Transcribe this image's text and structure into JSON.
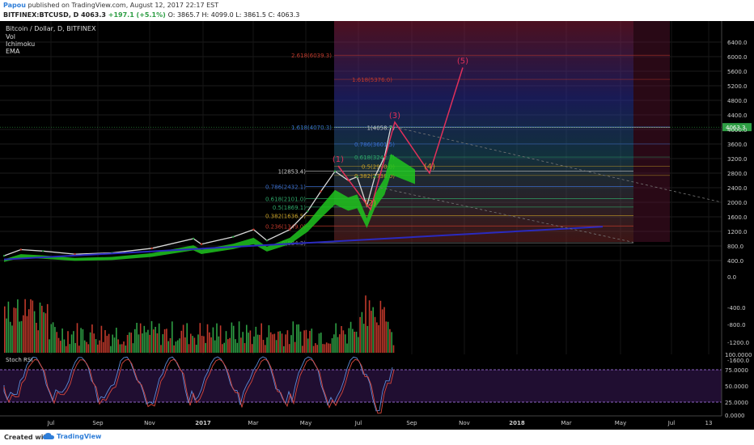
{
  "header": {
    "author": "Papou",
    "published": "published on TradingView.com, August 12, 2017 22:17 EST",
    "symbol": "BITFINEX:BTCUSD, D",
    "last": "4063.3",
    "change": "+197.1 (+5.1%)",
    "ohlc": "O: 3865.7 H: 4099.0 L: 3861.5 C: 4063.3"
  },
  "legend": {
    "title": "Bitcoin / Dollar, D, BITFINEX",
    "items": [
      "Vol",
      "Ichimoku",
      "EMA"
    ],
    "stoch": "Stoch RSI"
  },
  "footer": {
    "created": "Created with",
    "brand": "TradingView"
  },
  "colors": {
    "bg": "#000000",
    "up": "#2e9e44",
    "down": "#c0392b",
    "ichimoku": "#1ec41e",
    "ema": "#2a2abf",
    "wave": "#e0305a",
    "stoch_k": "#5b8bd9",
    "stoch_d": "#d9473b",
    "price_label": "#2e9e44"
  },
  "chart_data": {
    "type": "candlestick",
    "title": "Bitcoin / Dollar, D, BITFINEX",
    "symbol": "BITFINEX:BTCUSD",
    "ylim": [
      200,
      6700
    ],
    "y_ticks": [
      "6400.0",
      "6000.0",
      "5600.0",
      "5200.0",
      "4800.0",
      "4400.0",
      "4000.0",
      "3600.0",
      "3200.0",
      "2800.0",
      "2400.0",
      "2000.0",
      "1600.0",
      "1200.0",
      "800.0",
      "400.0"
    ],
    "x_ticks": [
      "Jul",
      "Sep",
      "Nov",
      "2017",
      "Mar",
      "May",
      "Jul",
      "Sep",
      "Nov",
      "2018",
      "Mar",
      "May",
      "Jul",
      "13"
    ],
    "last_price": 4063.3,
    "price_path": [
      [
        "2016-06-01",
        530
      ],
      [
        "2016-06-20",
        700
      ],
      [
        "2016-07-15",
        660
      ],
      [
        "2016-08-20",
        575
      ],
      [
        "2016-10-01",
        610
      ],
      [
        "2016-11-15",
        735
      ],
      [
        "2017-01-01",
        1000
      ],
      [
        "2017-01-10",
        850
      ],
      [
        "2017-02-15",
        1050
      ],
      [
        "2017-03-10",
        1250
      ],
      [
        "2017-03-25",
        950
      ],
      [
        "2017-04-20",
        1250
      ],
      [
        "2017-05-10",
        1750
      ],
      [
        "2017-05-25",
        2300
      ],
      [
        "2017-06-10",
        2853
      ],
      [
        "2017-06-25",
        2600
      ],
      [
        "2017-07-05",
        2700
      ],
      [
        "2017-07-16",
        1900
      ],
      [
        "2017-07-25",
        2700
      ],
      [
        "2017-08-05",
        3250
      ],
      [
        "2017-08-12",
        4063
      ]
    ],
    "fib_retracement": [
      {
        "level": "1",
        "value": 2853.4,
        "label": "1(2853.4)"
      },
      {
        "level": "0.786",
        "value": 2432.1,
        "label": "0.786(2432.1)"
      },
      {
        "level": "0.618",
        "value": 2101,
        "label": "0.618(2101.0)"
      },
      {
        "level": "0.5",
        "value": 1869,
        "label": "0.5(1869.1)"
      },
      {
        "level": "0.382",
        "value": 1636.5,
        "label": "0.382(1636.5)"
      },
      {
        "level": "0.236",
        "value": 1349,
        "label": "0.236(1349.0)"
      },
      {
        "level": "0",
        "value": 884.3,
        "label": "0(884.3)"
      }
    ],
    "fib_upper": [
      {
        "level": "2.618",
        "value": 6039.3,
        "label": "2.618(6039.3)"
      },
      {
        "level": "1.618",
        "value": 5376,
        "label": "1.618(5376.0)"
      },
      {
        "level": "1.618",
        "value": 4070,
        "label": "1.618(4070.3)"
      },
      {
        "level": "1",
        "value": 4058.7,
        "label": "1(4058.7)"
      },
      {
        "level": "0.786",
        "value": 3601.5,
        "label": "0.786(3601.5)"
      },
      {
        "level": "0.618",
        "value": 3242.7,
        "label": "0.618(3242.7)"
      },
      {
        "level": "0.5",
        "value": 2990,
        "label": "0.5(2990.0)"
      },
      {
        "level": "0.382",
        "value": 2738,
        "label": "0.382(2738.0)"
      }
    ],
    "elliott_waves": [
      {
        "label": "(1)",
        "price": 3000
      },
      {
        "label": "(2)",
        "price": 1800
      },
      {
        "label": "(3)",
        "price": 4200
      },
      {
        "label": "(4)",
        "price": 2800
      },
      {
        "label": "(5)",
        "price": 5700
      }
    ],
    "volume_ticks": [
      "0.0",
      "-400.0",
      "-800.0",
      "-1200.0",
      "-1600.0"
    ],
    "stoch_rsi": {
      "name": "Stoch RSI",
      "ylim": [
        0,
        100
      ],
      "ticks": [
        "100.0000",
        "75.0000",
        "50.0000",
        "25.0000",
        "0.0000"
      ],
      "bands": [
        20,
        80
      ]
    }
  }
}
